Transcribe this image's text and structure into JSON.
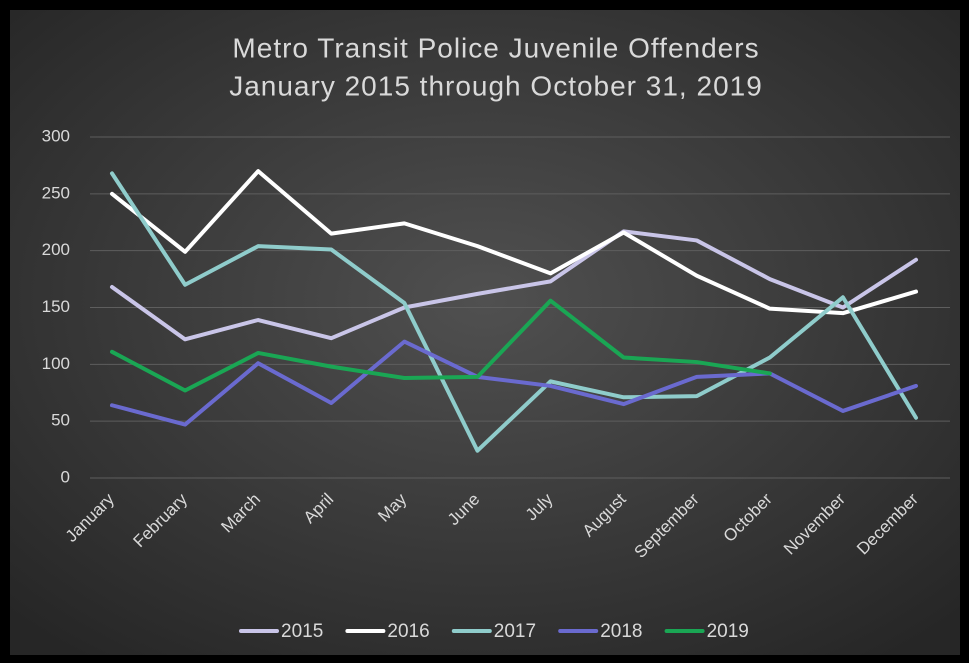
{
  "chart_data": {
    "type": "line",
    "title": "Metro Transit Police Juvenile Offenders",
    "subtitle": "January 2015 through October 31, 2019",
    "categories": [
      "January",
      "February",
      "March",
      "April",
      "May",
      "June",
      "July",
      "August",
      "September",
      "October",
      "November",
      "December"
    ],
    "series": [
      {
        "name": "2015",
        "color": "#c9c5e8",
        "values": [
          168,
          122,
          139,
          123,
          150,
          162,
          173,
          217,
          209,
          175,
          150,
          192
        ]
      },
      {
        "name": "2016",
        "color": "#ffffff",
        "values": [
          250,
          199,
          270,
          215,
          224,
          204,
          180,
          216,
          178,
          149,
          145,
          164
        ]
      },
      {
        "name": "2017",
        "color": "#8fcccb",
        "values": [
          268,
          170,
          204,
          201,
          154,
          24,
          85,
          71,
          72,
          106,
          159,
          53
        ]
      },
      {
        "name": "2018",
        "color": "#6a6acf",
        "values": [
          64,
          47,
          101,
          66,
          120,
          89,
          81,
          65,
          89,
          92,
          59,
          81
        ]
      },
      {
        "name": "2019",
        "color": "#1aa654",
        "values": [
          111,
          77,
          110,
          98,
          88,
          89,
          156,
          106,
          102,
          92,
          null,
          null
        ]
      }
    ],
    "ylim": [
      0,
      300
    ],
    "yticks": [
      0,
      50,
      100,
      150,
      200,
      250,
      300
    ],
    "grid": true,
    "legend": "bottom"
  }
}
